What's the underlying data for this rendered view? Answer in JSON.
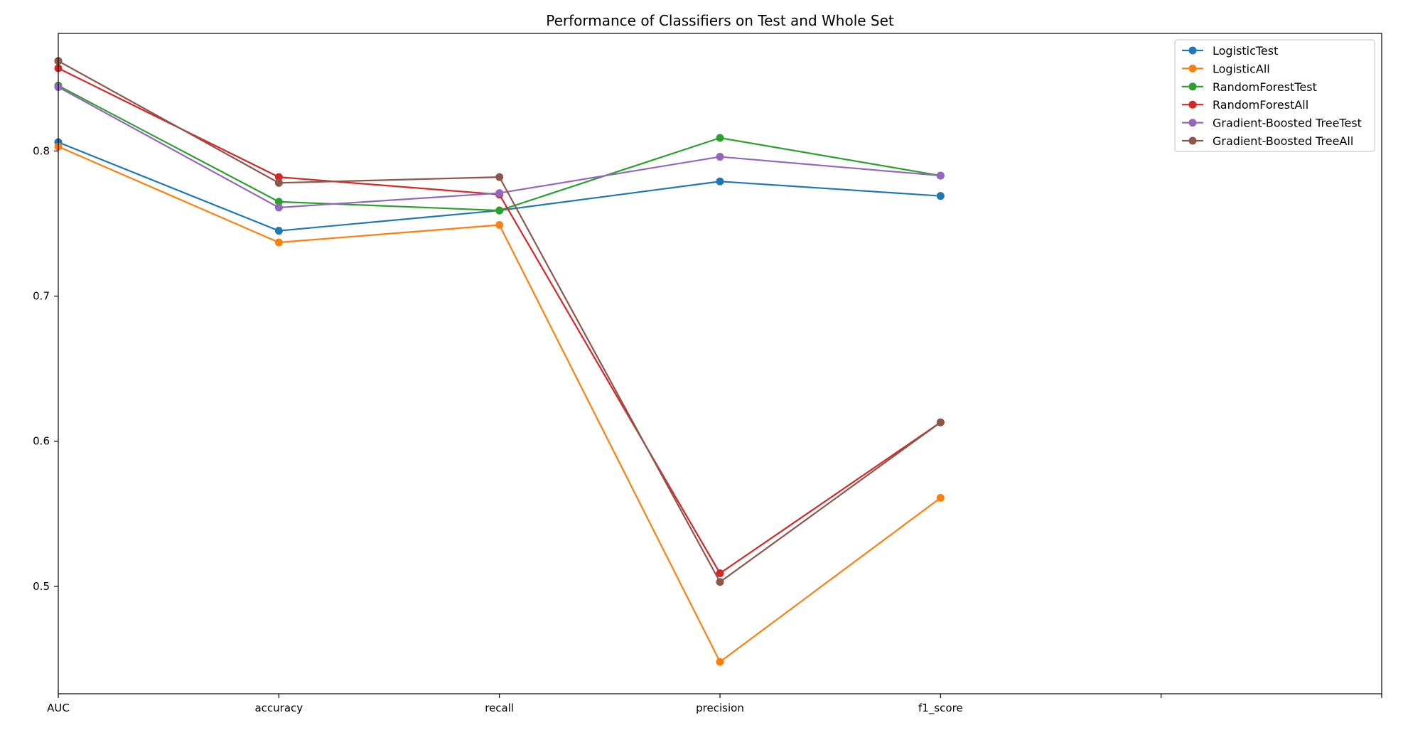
{
  "chart_data": {
    "type": "line",
    "title": "Performance of Classifiers on Test and Whole Set",
    "xlabel": "",
    "ylabel": "",
    "categories": [
      "AUC",
      "accuracy",
      "recall",
      "precision",
      "f1_score"
    ],
    "x_extra_tick_count": 1,
    "ylim": [
      0.426,
      0.881
    ],
    "y_ticks": [
      0.5,
      0.6,
      0.7,
      0.8
    ],
    "y_tick_labels": [
      "0.5",
      "0.6",
      "0.7",
      "0.8"
    ],
    "grid": false,
    "legend_position": "top-right",
    "series": [
      {
        "name": "LogisticTest",
        "color": "#1f77b4",
        "values": [
          0.806,
          0.745,
          0.759,
          0.779,
          0.769
        ]
      },
      {
        "name": "LogisticAll",
        "color": "#ff7f0e",
        "values": [
          0.803,
          0.737,
          0.749,
          0.448,
          0.561
        ]
      },
      {
        "name": "RandomForestTest",
        "color": "#2ca02c",
        "values": [
          0.845,
          0.765,
          0.759,
          0.809,
          0.783
        ]
      },
      {
        "name": "RandomForestAll",
        "color": "#d62728",
        "values": [
          0.857,
          0.782,
          0.77,
          0.509,
          0.613
        ]
      },
      {
        "name": "Gradient-Boosted TreeTest",
        "color": "#9467bd",
        "values": [
          0.844,
          0.761,
          0.771,
          0.796,
          0.783
        ]
      },
      {
        "name": "Gradient-Boosted TreeAll",
        "color": "#8c564b",
        "values": [
          0.862,
          0.778,
          0.782,
          0.503,
          0.613
        ]
      }
    ]
  }
}
